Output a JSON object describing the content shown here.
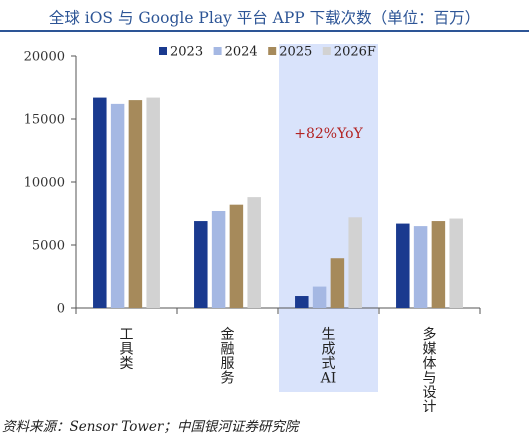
{
  "title": "全球 iOS 与 Google Play 平台 APP 下载次数（单位：百万）",
  "source": "资料来源：Sensor Tower；中国银河证券研究院",
  "chart_data": {
    "type": "bar",
    "categories": [
      "工具类",
      "金融服务",
      "生成式AI",
      "多媒体与设计"
    ],
    "series": [
      {
        "name": "2023",
        "values": [
          16700,
          6900,
          950,
          6700
        ]
      },
      {
        "name": "2024",
        "values": [
          16200,
          7700,
          1700,
          6500
        ]
      },
      {
        "name": "2025",
        "values": [
          16500,
          8200,
          3950,
          6900
        ]
      },
      {
        "name": "2026F",
        "values": [
          16700,
          8800,
          7200,
          7100
        ]
      }
    ],
    "colors": [
      "#1a3a8f",
      "#a5b8e3",
      "#a68a5b",
      "#d2d2d2"
    ],
    "ylim": [
      0,
      20000
    ],
    "yticks": [
      0,
      5000,
      10000,
      15000,
      20000
    ],
    "highlight": {
      "category": "生成式AI",
      "color": "#d9e3fb",
      "annotation": "+82%YoY"
    },
    "legend_position": "top",
    "grid": false
  }
}
